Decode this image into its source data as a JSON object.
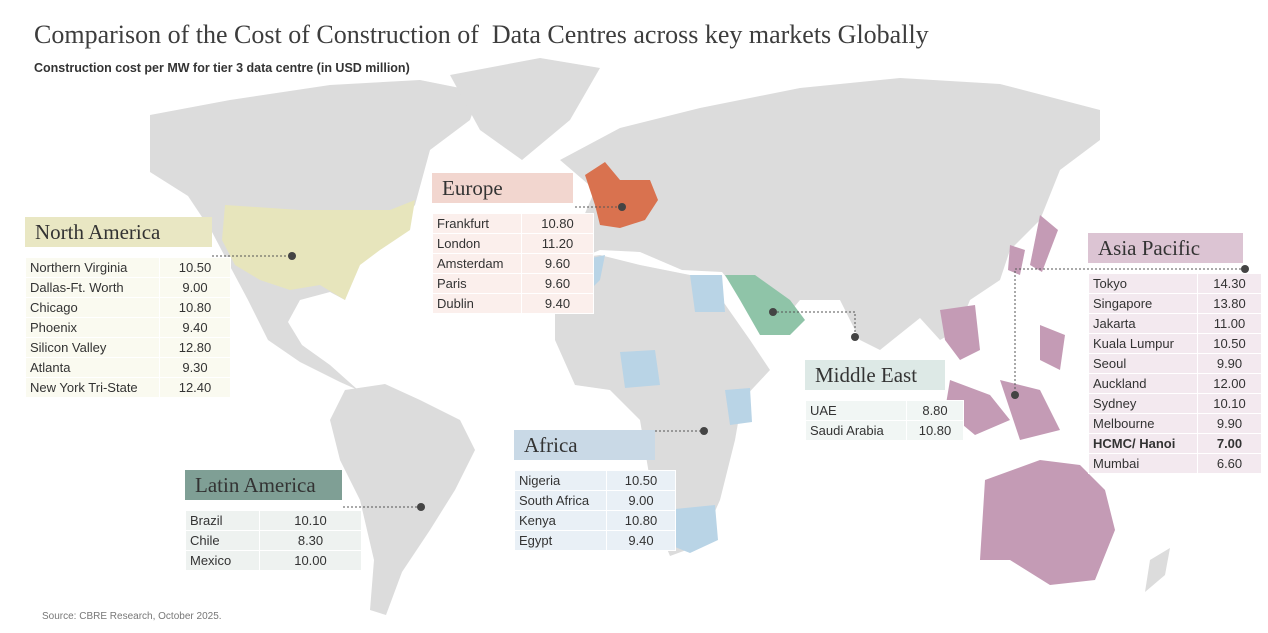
{
  "title": "Comparison of the Cost of Construction of  Data Centres across key markets Globally",
  "subtitle": "Construction cost per MW for tier 3 data centre (in USD million)",
  "source": "Source: CBRE Research, October 2025.",
  "regions": [
    {
      "name": "North America",
      "rows": [
        [
          "Northern Virginia",
          "10.50"
        ],
        [
          "Dallas-Ft. Worth",
          "9.00"
        ],
        [
          "Chicago",
          "10.80"
        ],
        [
          "Phoenix",
          "9.40"
        ],
        [
          "Silicon Valley",
          "12.80"
        ],
        [
          "Atlanta",
          "9.30"
        ],
        [
          "New York Tri-State",
          "12.40"
        ]
      ]
    },
    {
      "name": "Europe",
      "rows": [
        [
          "Frankfurt",
          "10.80"
        ],
        [
          "London",
          "11.20"
        ],
        [
          "Amsterdam",
          "9.60"
        ],
        [
          "Paris",
          "9.60"
        ],
        [
          "Dublin",
          "9.40"
        ]
      ]
    },
    {
      "name": "Middle East",
      "rows": [
        [
          "UAE",
          "8.80"
        ],
        [
          "Saudi Arabia",
          "10.80"
        ]
      ]
    },
    {
      "name": "Africa",
      "rows": [
        [
          "Nigeria",
          "10.50"
        ],
        [
          "South Africa",
          "9.00"
        ],
        [
          "Kenya",
          "10.80"
        ],
        [
          "Egypt",
          "9.40"
        ]
      ]
    },
    {
      "name": "Latin America",
      "rows": [
        [
          "Brazil",
          "10.10"
        ],
        [
          "Chile",
          "8.30"
        ],
        [
          "Mexico",
          "10.00"
        ]
      ]
    },
    {
      "name": "Asia Pacific",
      "rows": [
        [
          "Tokyo",
          "14.30"
        ],
        [
          "Singapore",
          "13.80"
        ],
        [
          "Jakarta",
          "11.00"
        ],
        [
          "Kuala Lumpur",
          "10.50"
        ],
        [
          "Seoul",
          "9.90"
        ],
        [
          "Auckland",
          "12.00"
        ],
        [
          "Sydney",
          "10.10"
        ],
        [
          "Melbourne",
          "9.90"
        ],
        [
          "HCMC/ Hanoi",
          "7.00"
        ],
        [
          "Mumbai",
          "6.60"
        ]
      ]
    }
  ]
}
